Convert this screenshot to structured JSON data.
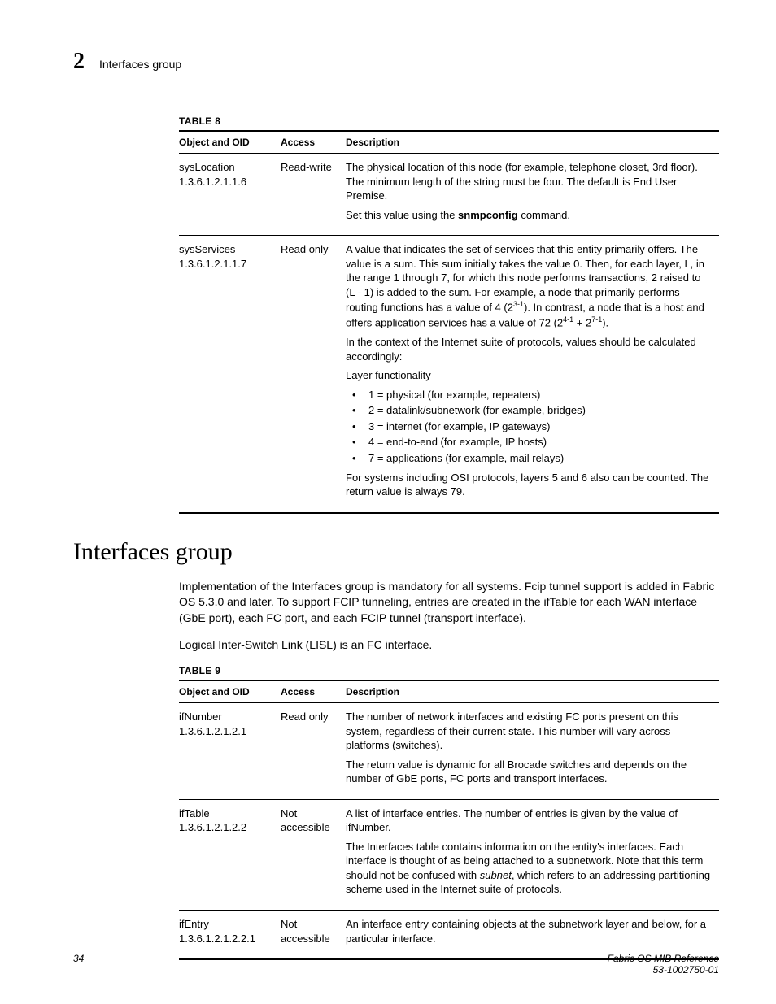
{
  "header": {
    "chapter_number": "2",
    "title": "Interfaces group"
  },
  "table8": {
    "label": "TABLE 8",
    "columns": [
      "Object and OID",
      "Access",
      "Description"
    ],
    "rows": [
      {
        "object_name": "sysLocation",
        "oid": "1.3.6.1.2.1.1.6",
        "access": "Read-write",
        "desc_p1": "The physical location of this node (for example, telephone closet, 3rd floor). The minimum length of the string must be four. The default is End User Premise.",
        "desc_p2_pre": "Set this value using the ",
        "desc_p2_cmd": "snmpconfig",
        "desc_p2_post": " command."
      },
      {
        "object_name": "sysServices",
        "oid": "1.3.6.1.2.1.1.7",
        "access": "Read only",
        "desc_p1": "A value that indicates the set of services that this entity primarily offers. The value is a sum. This sum initially takes the value 0. Then, for each layer, L, in the range 1 through 7, for which this node performs transactions, 2 raised to (L - 1) is added to the sum. For example, a node that primarily performs routing functions has a value of 4 (2",
        "sup1": "3-1",
        "desc_p1b": "). In contrast, a node that is a host and offers application services has a value of 72 (2",
        "sup2": "4-1",
        "plus": " + 2",
        "sup3": "7-1",
        "desc_p1c": ").",
        "desc_p2": "In the context of the Internet suite of protocols, values should be calculated accordingly:",
        "layer_label": "Layer functionality",
        "bullets": [
          "1 = physical (for example, repeaters)",
          "2 = datalink/subnetwork (for example, bridges)",
          "3 = internet (for example, IP gateways)",
          "4 = end-to-end (for example, IP hosts)",
          "7 = applications (for example, mail relays)"
        ],
        "desc_p3": "For systems including OSI protocols, layers 5 and 6 also can be counted. The return value is always 79."
      }
    ]
  },
  "section": {
    "heading": "Interfaces group",
    "para1": "Implementation of the Interfaces group is mandatory for all systems. Fcip tunnel support is added in Fabric OS 5.3.0 and later. To support FCIP tunneling, entries are created in the ifTable for each WAN interface (GbE port), each FC port, and each FCIP tunnel (transport interface).",
    "para2": "Logical Inter-Switch Link (LISL) is an FC interface."
  },
  "table9": {
    "label": "TABLE 9",
    "columns": [
      "Object and OID",
      "Access",
      "Description"
    ],
    "rows": [
      {
        "object_name": "ifNumber",
        "oid": "1.3.6.1.2.1.2.1",
        "access": "Read only",
        "desc_p1": "The number of network interfaces and existing FC ports present on this system, regardless of their current state. This number will vary across platforms (switches).",
        "desc_p2": "The return value is dynamic for all Brocade switches and depends on the number of GbE ports, FC ports and transport interfaces."
      },
      {
        "object_name": "ifTable",
        "oid": "1.3.6.1.2.1.2.2",
        "access": "Not accessible",
        "desc_p1": "A list of interface entries. The number of entries is given by the value of ifNumber.",
        "desc_p2_a": "The Interfaces table contains information on the entity's interfaces. Each interface is thought of as being attached to a subnetwork. Note that this term should not be confused with ",
        "desc_p2_ital": "subnet",
        "desc_p2_b": ", which refers to an addressing partitioning scheme used in the Internet suite of protocols."
      },
      {
        "object_name": "ifEntry",
        "oid": "1.3.6.1.2.1.2.2.1",
        "access": "Not accessible",
        "desc_p1": "An interface entry containing objects at the subnetwork layer and below, for a particular interface."
      }
    ]
  },
  "footer": {
    "page": "34",
    "ref_title": "Fabric OS MIB Reference",
    "ref_num": "53-1002750-01"
  }
}
